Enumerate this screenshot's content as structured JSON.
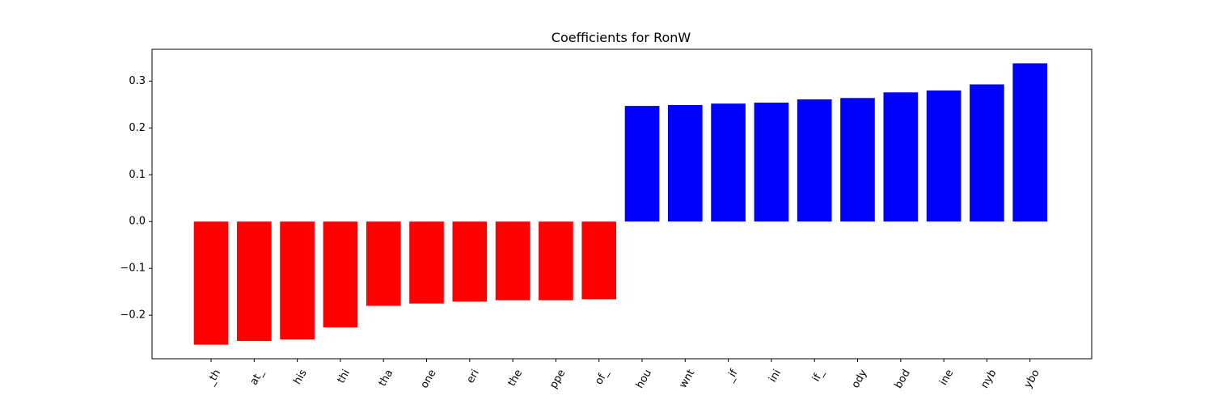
{
  "chart_data": {
    "type": "bar",
    "title": "Coefficients for RonW",
    "xlabel": "",
    "ylabel": "",
    "categories": [
      "_th",
      "at_",
      "his",
      "thi",
      "tha",
      "one",
      "eri",
      "the",
      "ppe",
      "of_",
      "hou",
      "wnt",
      "_if",
      "ini",
      "if_",
      "ody",
      "bod",
      "ine",
      "nyb",
      "ybo"
    ],
    "values": [
      -0.263,
      -0.255,
      -0.252,
      -0.226,
      -0.18,
      -0.175,
      -0.171,
      -0.168,
      -0.168,
      -0.166,
      0.247,
      0.249,
      0.252,
      0.254,
      0.261,
      0.264,
      0.276,
      0.28,
      0.293,
      0.338
    ],
    "yticks": [
      -0.2,
      -0.1,
      0.0,
      0.1,
      0.2,
      0.3
    ],
    "ytick_labels": [
      "−0.2",
      "−0.1",
      "0.0",
      "0.1",
      "0.2",
      "0.3"
    ],
    "ylim": [
      -0.293,
      0.368
    ],
    "colors": {
      "negative": "#ff0000",
      "positive": "#0000ff"
    },
    "grid": false,
    "legend": "none"
  }
}
